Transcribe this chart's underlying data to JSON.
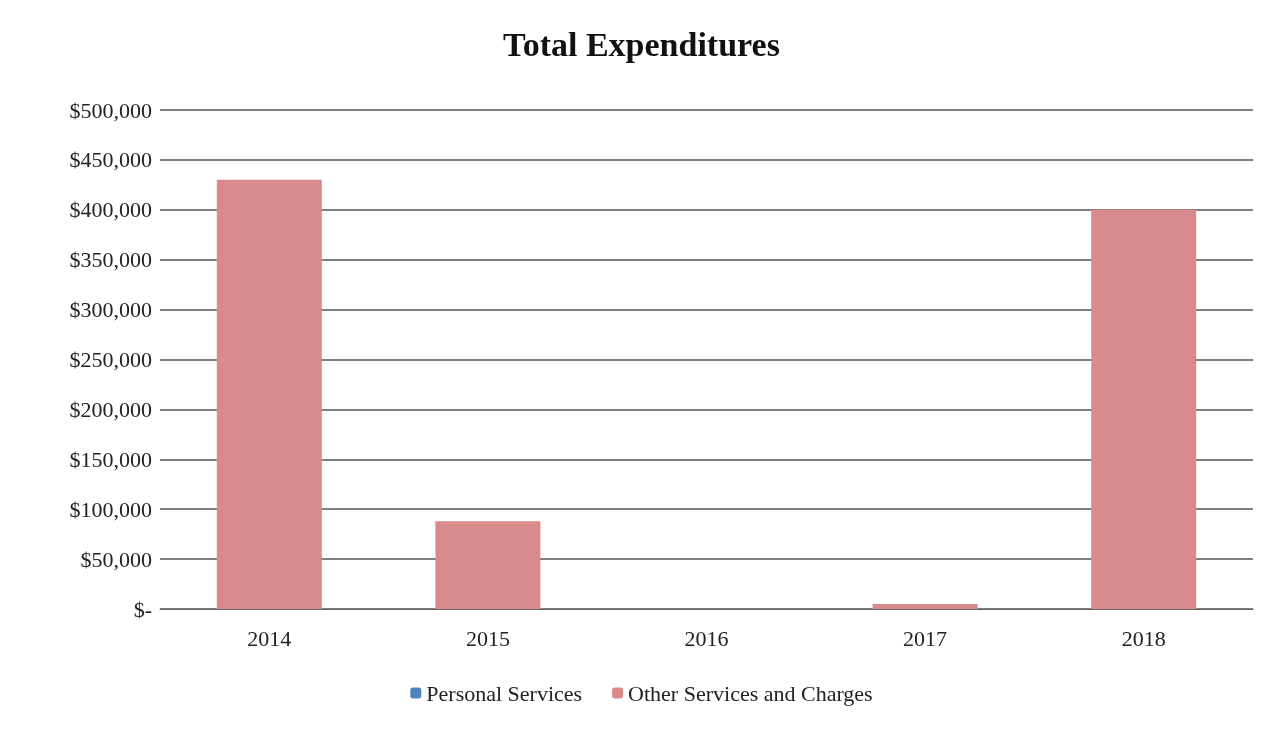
{
  "chart_data": {
    "type": "bar",
    "title": "Total Expenditures",
    "categories": [
      "2014",
      "2015",
      "2016",
      "2017",
      "2018"
    ],
    "series": [
      {
        "name": "Personal Services",
        "color": "#4f81bd",
        "values": [
          0,
          0,
          0,
          0,
          0
        ]
      },
      {
        "name": "Other Services and Charges",
        "color": "#d98a8b",
        "values": [
          430000,
          88000,
          0,
          5000,
          400000
        ]
      }
    ],
    "ylim": [
      0,
      500000
    ],
    "yticks": [
      {
        "value": 0,
        "label": "$-"
      },
      {
        "value": 50000,
        "label": "$50,000"
      },
      {
        "value": 100000,
        "label": "$100,000"
      },
      {
        "value": 150000,
        "label": "$150,000"
      },
      {
        "value": 200000,
        "label": "$200,000"
      },
      {
        "value": 250000,
        "label": "$250,000"
      },
      {
        "value": 300000,
        "label": "$300,000"
      },
      {
        "value": 350000,
        "label": "$350,000"
      },
      {
        "value": 400000,
        "label": "$400,000"
      },
      {
        "value": 450000,
        "label": "$450,000"
      },
      {
        "value": 500000,
        "label": "$500,000"
      }
    ],
    "grid": "y",
    "legend": "bottom"
  }
}
